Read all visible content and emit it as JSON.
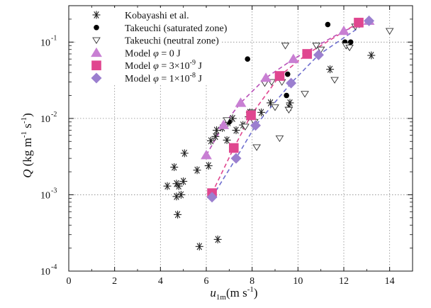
{
  "chart_data": {
    "type": "scatter",
    "x_axis": {
      "label_main": "u",
      "label_sub": "1m",
      "label_units": "(m s",
      "label_exp": "-1",
      "label_close": ")",
      "range": [
        0,
        15
      ],
      "ticks": [
        0,
        2,
        4,
        6,
        8,
        10,
        12,
        14
      ],
      "tick_labels": [
        "0",
        "2",
        "4",
        "6",
        "8",
        "10",
        "12",
        "14"
      ]
    },
    "y_axis": {
      "label_q": "Q",
      "label_units_a": " (kg m",
      "label_exp_a": "-1",
      "label_units_b": " s",
      "label_exp_b": "-1",
      "label_close": ")",
      "scale": "log",
      "range": [
        0.0001,
        0.3
      ],
      "ticks": [
        0.0001,
        0.001,
        0.01,
        0.1
      ],
      "tick_labels": [
        {
          "base": "10",
          "exp": "-4"
        },
        {
          "base": "10",
          "exp": "-3"
        },
        {
          "base": "10",
          "exp": "-2"
        },
        {
          "base": "10",
          "exp": "-1"
        }
      ]
    },
    "grid": "dotted",
    "legend_position": "top-left",
    "legend": [
      {
        "text": "Kobayashi et al."
      },
      {
        "text": "Takeuchi (saturated zone)"
      },
      {
        "text": "Takeuchi (neutral zone)"
      },
      {
        "text_pre": "Model ",
        "phi": "φ",
        "text_post": " = 0 J"
      },
      {
        "text_pre": "Model ",
        "phi": "φ",
        "text_post": " = 3×10",
        "exp": "-9",
        "unit": " J"
      },
      {
        "text_pre": "Model ",
        "phi": "φ",
        "text_post": " = 1×10",
        "exp": "-8",
        "unit": " J"
      }
    ],
    "series": [
      {
        "marker": "asterisk",
        "color": "#222222",
        "points": [
          [
            4.3,
            0.0013
          ],
          [
            4.6,
            0.0023
          ],
          [
            4.7,
            0.0014
          ],
          [
            4.7,
            0.00095
          ],
          [
            4.75,
            0.00055
          ],
          [
            4.8,
            0.0013
          ],
          [
            4.9,
            0.001
          ],
          [
            5.0,
            0.0015
          ],
          [
            5.05,
            0.0035
          ],
          [
            5.6,
            0.0021
          ],
          [
            5.7,
            0.00021
          ],
          [
            6.1,
            0.0024
          ],
          [
            6.2,
            0.0051
          ],
          [
            6.4,
            0.0058
          ],
          [
            6.45,
            0.007
          ],
          [
            6.5,
            0.00026
          ],
          [
            6.7,
            0.0075
          ],
          [
            6.9,
            0.0052
          ],
          [
            6.95,
            0.0088
          ],
          [
            7.15,
            0.01
          ],
          [
            7.3,
            0.007
          ],
          [
            7.6,
            0.0082
          ],
          [
            7.85,
            0.0105
          ],
          [
            7.9,
            0.012
          ],
          [
            8.4,
            0.012
          ],
          [
            8.8,
            0.016
          ],
          [
            9.6,
            0.014
          ],
          [
            9.65,
            0.016
          ],
          [
            11.4,
            0.044
          ],
          [
            12.2,
            0.09
          ],
          [
            13.2,
            0.067
          ]
        ]
      },
      {
        "marker": "filled-circle",
        "color": "#000000",
        "points": [
          [
            7.0,
            0.009
          ],
          [
            7.8,
            0.06
          ],
          [
            9.5,
            0.02
          ],
          [
            9.55,
            0.038
          ],
          [
            11.3,
            0.17
          ],
          [
            12.05,
            0.1
          ],
          [
            12.3,
            0.1
          ]
        ]
      },
      {
        "marker": "open-triangle-down",
        "color": "#333333",
        "points": [
          [
            6.9,
            0.0095
          ],
          [
            7.7,
            0.0078
          ],
          [
            8.0,
            0.012
          ],
          [
            8.1,
            0.009
          ],
          [
            8.2,
            0.0042
          ],
          [
            8.55,
            0.029
          ],
          [
            8.85,
            0.03
          ],
          [
            9.0,
            0.014
          ],
          [
            9.2,
            0.0055
          ],
          [
            9.3,
            0.03
          ],
          [
            9.45,
            0.09
          ],
          [
            9.6,
            0.013
          ],
          [
            10.3,
            0.021
          ],
          [
            10.8,
            0.09
          ],
          [
            11.0,
            0.08
          ],
          [
            11.6,
            0.032
          ],
          [
            12.1,
            0.09
          ],
          [
            12.25,
            0.085
          ],
          [
            12.5,
            0.16
          ],
          [
            14.0,
            0.14
          ]
        ]
      },
      {
        "marker": "triangle-up",
        "color": "#c87fd3",
        "line_color": "#b84fb8",
        "points": [
          [
            6.0,
            0.0033
          ],
          [
            6.75,
            0.0082
          ],
          [
            7.5,
            0.016
          ],
          [
            8.6,
            0.034
          ],
          [
            9.8,
            0.06
          ],
          [
            12.0,
            0.14
          ],
          [
            13.1,
            0.19
          ]
        ]
      },
      {
        "marker": "square",
        "color": "#e0468f",
        "line_color": "#e0468f",
        "points": [
          [
            6.25,
            0.00105
          ],
          [
            7.2,
            0.0041
          ],
          [
            7.95,
            0.011
          ],
          [
            9.2,
            0.036
          ],
          [
            10.4,
            0.07
          ],
          [
            12.65,
            0.18
          ]
        ]
      },
      {
        "marker": "diamond",
        "color": "#9b7fcf",
        "line_color": "#6f6fcf",
        "points": [
          [
            6.25,
            0.00093
          ],
          [
            7.3,
            0.003
          ],
          [
            8.15,
            0.0081
          ],
          [
            9.7,
            0.029
          ],
          [
            10.9,
            0.068
          ],
          [
            13.1,
            0.19
          ]
        ]
      }
    ]
  }
}
